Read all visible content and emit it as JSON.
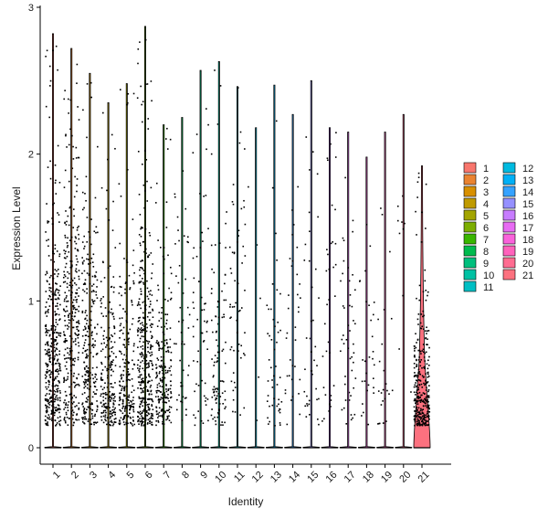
{
  "chart_data": {
    "type": "violin",
    "xlabel": "Identity",
    "ylabel": "Expression Level",
    "ylim": [
      0,
      3
    ],
    "y_ticks": [
      0,
      1,
      2,
      3
    ],
    "categories": [
      "1",
      "2",
      "3",
      "4",
      "5",
      "6",
      "7",
      "8",
      "9",
      "10",
      "11",
      "12",
      "13",
      "14",
      "15",
      "16",
      "17",
      "18",
      "19",
      "20",
      "21"
    ],
    "grid": false,
    "legend_position": "right",
    "series": [
      {
        "name": "1",
        "color": "#F8766D",
        "fraction_nonzero": 0.55,
        "max": 2.82,
        "center": 0.6,
        "spread": 0.4
      },
      {
        "name": "2",
        "color": "#EA8331",
        "fraction_nonzero": 0.45,
        "max": 2.72,
        "center": 0.8,
        "spread": 0.55
      },
      {
        "name": "3",
        "color": "#D89000",
        "fraction_nonzero": 0.35,
        "max": 2.55,
        "center": 0.6,
        "spread": 0.5
      },
      {
        "name": "4",
        "color": "#C09B00",
        "fraction_nonzero": 0.3,
        "max": 2.35,
        "center": 0.4,
        "spread": 0.35
      },
      {
        "name": "5",
        "color": "#A3A500",
        "fraction_nonzero": 0.3,
        "max": 2.48,
        "center": 0.4,
        "spread": 0.35
      },
      {
        "name": "6",
        "color": "#7CAE00",
        "fraction_nonzero": 0.5,
        "max": 2.87,
        "center": 0.55,
        "spread": 0.45
      },
      {
        "name": "7",
        "color": "#39B600",
        "fraction_nonzero": 0.3,
        "max": 2.2,
        "center": 0.45,
        "spread": 0.35
      },
      {
        "name": "8",
        "color": "#00BB4E",
        "fraction_nonzero": 0.1,
        "max": 2.25,
        "center": 0.8,
        "spread": 0.5
      },
      {
        "name": "9",
        "color": "#00BF7D",
        "fraction_nonzero": 0.12,
        "max": 2.57,
        "center": 0.8,
        "spread": 0.6
      },
      {
        "name": "10",
        "color": "#00C1A3",
        "fraction_nonzero": 0.2,
        "max": 2.63,
        "center": 0.6,
        "spread": 0.45
      },
      {
        "name": "11",
        "color": "#00BFC4",
        "fraction_nonzero": 0.12,
        "max": 2.46,
        "center": 0.8,
        "spread": 0.5
      },
      {
        "name": "12",
        "color": "#00BAE0",
        "fraction_nonzero": 0.01,
        "max": 2.18,
        "center": 1.2,
        "spread": 0.6
      },
      {
        "name": "13",
        "color": "#00B0F6",
        "fraction_nonzero": 0.1,
        "max": 2.47,
        "center": 0.6,
        "spread": 0.4
      },
      {
        "name": "14",
        "color": "#35A2FF",
        "fraction_nonzero": 0.07,
        "max": 2.27,
        "center": 0.8,
        "spread": 0.5
      },
      {
        "name": "15",
        "color": "#9590FF",
        "fraction_nonzero": 0.08,
        "max": 2.5,
        "center": 0.8,
        "spread": 0.55
      },
      {
        "name": "16",
        "color": "#C77CFF",
        "fraction_nonzero": 0.07,
        "max": 2.18,
        "center": 0.8,
        "spread": 0.5
      },
      {
        "name": "17",
        "color": "#E76BF3",
        "fraction_nonzero": 0.1,
        "max": 2.15,
        "center": 0.6,
        "spread": 0.4
      },
      {
        "name": "18",
        "color": "#FA62DB",
        "fraction_nonzero": 0.06,
        "max": 1.98,
        "center": 0.7,
        "spread": 0.4
      },
      {
        "name": "19",
        "color": "#FF62BC",
        "fraction_nonzero": 0.05,
        "max": 2.15,
        "center": 0.6,
        "spread": 0.4
      },
      {
        "name": "20",
        "color": "#FF6C91",
        "fraction_nonzero": 0.02,
        "max": 2.27,
        "center": 1.2,
        "spread": 0.6
      },
      {
        "name": "21",
        "color": "#FC717F",
        "fraction_nonzero": 0.45,
        "max": 1.92,
        "center": 0.3,
        "spread": 0.3
      }
    ]
  }
}
